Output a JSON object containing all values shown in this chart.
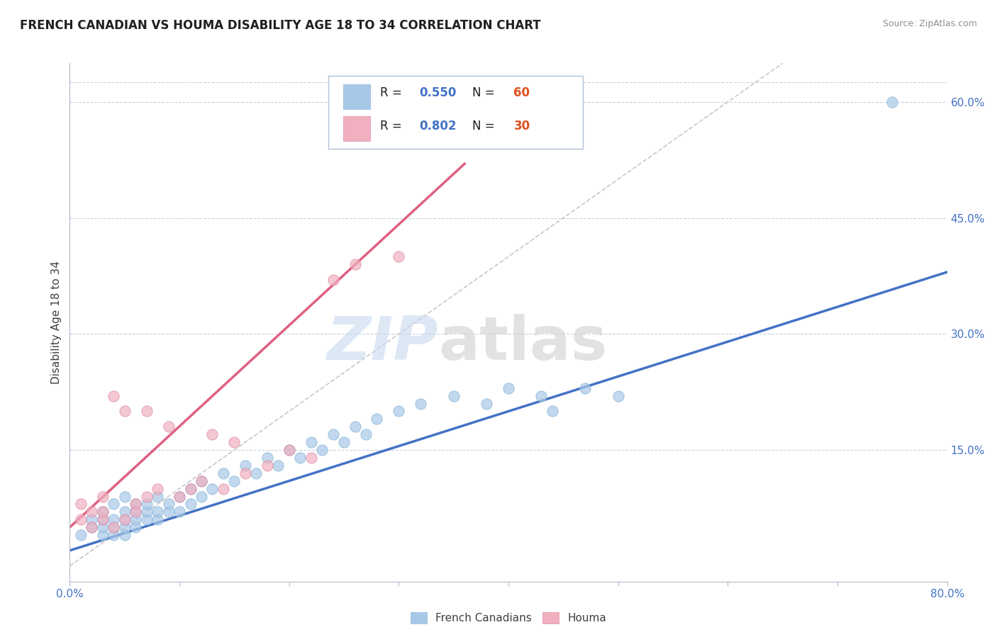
{
  "title": "FRENCH CANADIAN VS HOUMA DISABILITY AGE 18 TO 34 CORRELATION CHART",
  "source_text": "Source: ZipAtlas.com",
  "ylabel": "Disability Age 18 to 34",
  "xlim": [
    0.0,
    0.8
  ],
  "ylim": [
    -0.02,
    0.65
  ],
  "xticks": [
    0.0,
    0.1,
    0.2,
    0.3,
    0.4,
    0.5,
    0.6,
    0.7,
    0.8
  ],
  "xticklabels": [
    "0.0%",
    "",
    "",
    "",
    "",
    "",
    "",
    "",
    "80.0%"
  ],
  "yticks_right": [
    0.0,
    0.15,
    0.3,
    0.45,
    0.6
  ],
  "yticklabels_right": [
    "",
    "15.0%",
    "30.0%",
    "45.0%",
    "60.0%"
  ],
  "blue_color": "#a8c8e8",
  "pink_color": "#f0b0c0",
  "trend_blue": "#4472c4",
  "trend_pink": "#e06080",
  "trend_gray": "#c8c8c8",
  "legend_r_blue": "R = 0.550",
  "legend_n_blue": "N = 60",
  "legend_r_pink": "R = 0.802",
  "legend_n_pink": "N = 30",
  "blue_scatter_x": [
    0.01,
    0.02,
    0.02,
    0.03,
    0.03,
    0.03,
    0.03,
    0.04,
    0.04,
    0.04,
    0.04,
    0.05,
    0.05,
    0.05,
    0.05,
    0.05,
    0.06,
    0.06,
    0.06,
    0.06,
    0.07,
    0.07,
    0.07,
    0.08,
    0.08,
    0.08,
    0.09,
    0.09,
    0.1,
    0.1,
    0.11,
    0.11,
    0.12,
    0.12,
    0.13,
    0.14,
    0.15,
    0.16,
    0.17,
    0.18,
    0.19,
    0.2,
    0.21,
    0.22,
    0.23,
    0.24,
    0.25,
    0.26,
    0.27,
    0.28,
    0.3,
    0.32,
    0.35,
    0.38,
    0.4,
    0.43,
    0.44,
    0.47,
    0.5,
    0.75
  ],
  "blue_scatter_y": [
    0.04,
    0.05,
    0.06,
    0.04,
    0.05,
    0.06,
    0.07,
    0.04,
    0.05,
    0.06,
    0.08,
    0.04,
    0.05,
    0.06,
    0.07,
    0.09,
    0.05,
    0.06,
    0.07,
    0.08,
    0.06,
    0.07,
    0.08,
    0.06,
    0.07,
    0.09,
    0.07,
    0.08,
    0.07,
    0.09,
    0.08,
    0.1,
    0.09,
    0.11,
    0.1,
    0.12,
    0.11,
    0.13,
    0.12,
    0.14,
    0.13,
    0.15,
    0.14,
    0.16,
    0.15,
    0.17,
    0.16,
    0.18,
    0.17,
    0.19,
    0.2,
    0.21,
    0.22,
    0.21,
    0.23,
    0.22,
    0.2,
    0.23,
    0.22,
    0.6
  ],
  "pink_scatter_x": [
    0.01,
    0.01,
    0.02,
    0.02,
    0.03,
    0.03,
    0.03,
    0.04,
    0.04,
    0.05,
    0.05,
    0.06,
    0.06,
    0.07,
    0.07,
    0.08,
    0.09,
    0.1,
    0.11,
    0.12,
    0.13,
    0.14,
    0.15,
    0.16,
    0.18,
    0.2,
    0.22,
    0.24,
    0.26,
    0.3
  ],
  "pink_scatter_y": [
    0.06,
    0.08,
    0.05,
    0.07,
    0.06,
    0.07,
    0.09,
    0.05,
    0.22,
    0.06,
    0.2,
    0.08,
    0.07,
    0.09,
    0.2,
    0.1,
    0.18,
    0.09,
    0.1,
    0.11,
    0.17,
    0.1,
    0.16,
    0.12,
    0.13,
    0.15,
    0.14,
    0.37,
    0.39,
    0.4
  ],
  "blue_trend_x": [
    0.0,
    0.8
  ],
  "blue_trend_y": [
    0.02,
    0.38
  ],
  "pink_trend_x": [
    0.0,
    0.36
  ],
  "pink_trend_y": [
    0.05,
    0.52
  ],
  "gray_trend_x": [
    0.0,
    0.65
  ],
  "gray_trend_y": [
    0.0,
    0.65
  ]
}
